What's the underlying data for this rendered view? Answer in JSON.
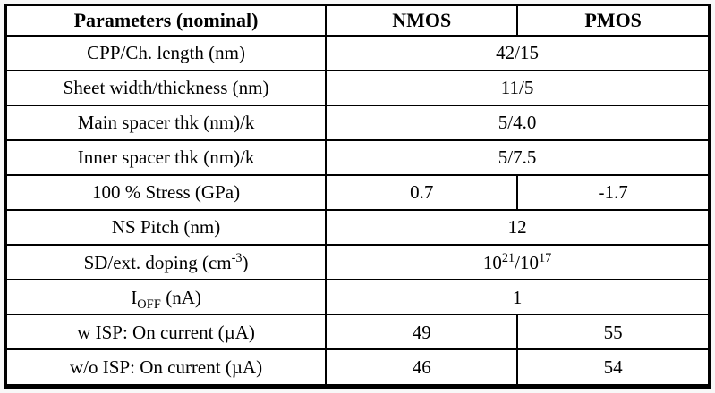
{
  "table": {
    "header": {
      "parameters": "Parameters (nominal)",
      "nmos": "NMOS",
      "pmos": "PMOS"
    },
    "rows": [
      {
        "label": "CPP/Ch. length (nm)",
        "value": "42/15"
      },
      {
        "label": "Sheet width/thickness (nm)",
        "value": "11/5"
      },
      {
        "label": "Main spacer thk (nm)/k",
        "value": "5/4.0"
      },
      {
        "label": "Inner spacer thk (nm)/k",
        "value": "5/7.5"
      },
      {
        "label": "100 % Stress (GPa)",
        "nmos": "0.7",
        "pmos": "-1.7"
      },
      {
        "label": "NS Pitch (nm)",
        "value": "12"
      },
      {
        "label_pre": "SD/ext. doping (cm",
        "label_sup": "-3",
        "label_post": ")",
        "value_base1": "10",
        "value_sup1": "21",
        "value_base2": "/10",
        "value_sup2": "17"
      },
      {
        "label_base": "I",
        "label_sub": "OFF",
        "label_post": " (nA)",
        "value": "1"
      },
      {
        "label": "w ISP: On current (µA)",
        "nmos": "49",
        "pmos": "55"
      },
      {
        "label": "w/o ISP: On current (µA)",
        "nmos": "46",
        "pmos": "54"
      }
    ]
  }
}
